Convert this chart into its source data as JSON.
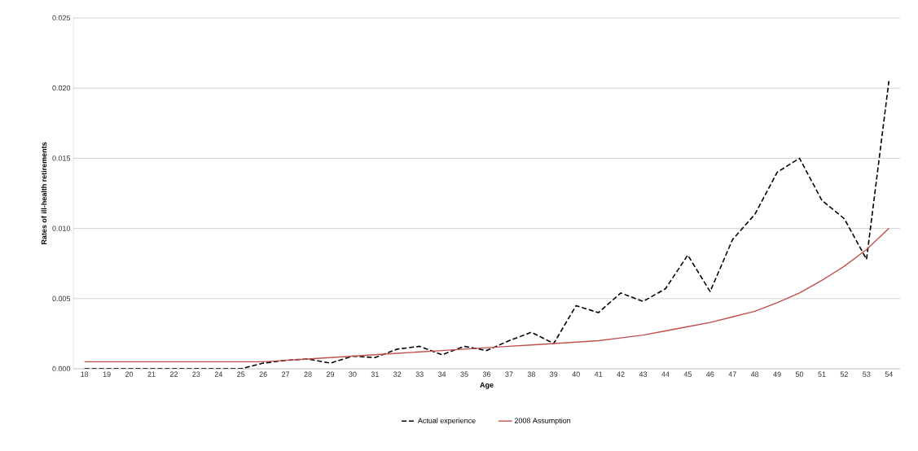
{
  "chart_data": {
    "type": "line",
    "xlabel": "Age",
    "ylabel": "Rates of ill-health retirements",
    "categories": [
      "18",
      "19",
      "20",
      "21",
      "22",
      "23",
      "24",
      "25",
      "26",
      "27",
      "28",
      "29",
      "30",
      "31",
      "32",
      "33",
      "34",
      "35",
      "36",
      "37",
      "38",
      "39",
      "40",
      "41",
      "42",
      "43",
      "44",
      "45",
      "46",
      "47",
      "48",
      "49",
      "50",
      "51",
      "52",
      "53",
      "54"
    ],
    "series": [
      {
        "name": "Actual experience",
        "color": "#000000",
        "line_style": "dashed",
        "values": [
          0,
          0,
          0,
          0,
          0,
          0,
          0,
          0,
          0.0004,
          0.0006,
          0.0007,
          0.0004,
          0.0009,
          0.0008,
          0.0014,
          0.0016,
          0.001,
          0.0016,
          0.0013,
          0.002,
          0.0026,
          0.0018,
          0.0045,
          0.004,
          0.0054,
          0.0048,
          0.0057,
          0.0081,
          0.0055,
          0.0092,
          0.011,
          0.014,
          0.015,
          0.012,
          0.0107,
          0.0078,
          0.0205
        ]
      },
      {
        "name": "2008 Assumption",
        "color": "#c0504d",
        "line_style": "solid",
        "values": [
          0.0005,
          0.0005,
          0.0005,
          0.0005,
          0.0005,
          0.0005,
          0.0005,
          0.0005,
          0.0005,
          0.0006,
          0.0007,
          0.0008,
          0.0009,
          0.001,
          0.0011,
          0.0012,
          0.0013,
          0.0014,
          0.0015,
          0.0016,
          0.0017,
          0.0018,
          0.0019,
          0.002,
          0.0022,
          0.0024,
          0.0027,
          0.003,
          0.0033,
          0.0037,
          0.0041,
          0.0047,
          0.0054,
          0.0063,
          0.0073,
          0.0085,
          0.01
        ]
      }
    ],
    "ylim": [
      0,
      0.025
    ],
    "yticks": [
      {
        "value": 0,
        "label": "0.000"
      },
      {
        "value": 0.005,
        "label": "0.005"
      },
      {
        "value": 0.01,
        "label": "0.010"
      },
      {
        "value": 0.015,
        "label": "0.015"
      },
      {
        "value": 0.02,
        "label": "0.020"
      },
      {
        "value": 0.025,
        "label": "0.025"
      }
    ],
    "grid": "y",
    "legend": "bottom",
    "marker": "none"
  }
}
